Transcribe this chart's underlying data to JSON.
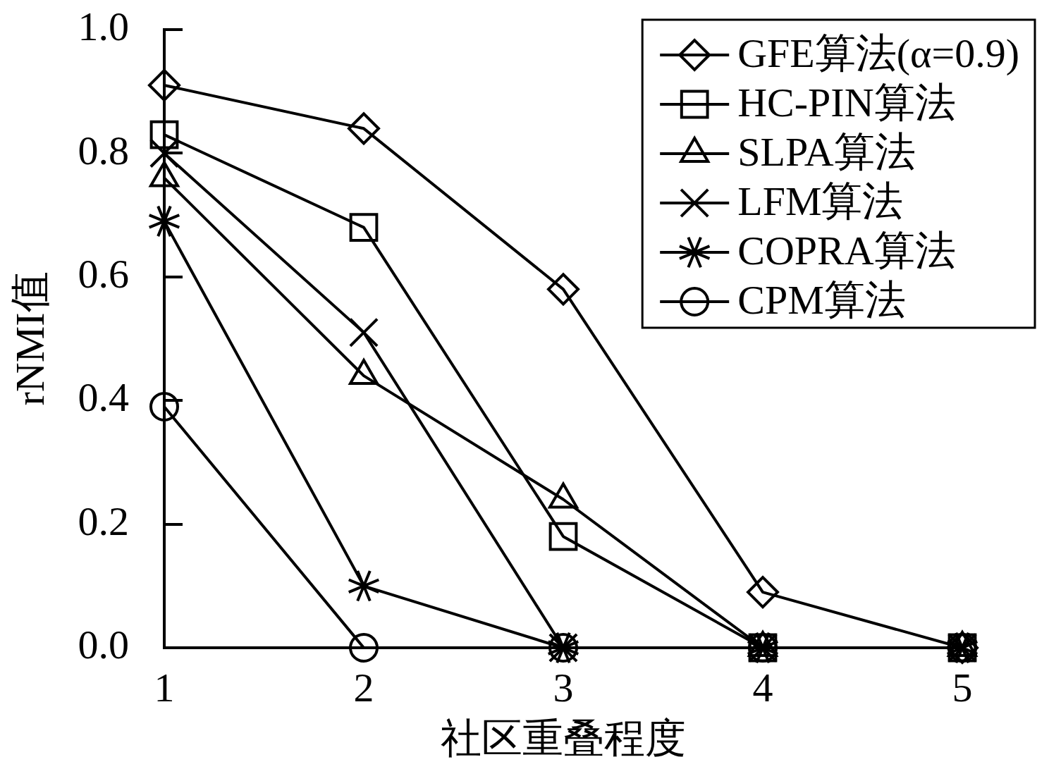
{
  "chart_data": {
    "type": "line",
    "xlabel": "社区重叠程度",
    "ylabel": "rNMI值",
    "categories": [
      "1",
      "2",
      "3",
      "4",
      "5"
    ],
    "ylim": [
      0,
      1
    ],
    "yticks": [
      {
        "value": 0,
        "label": "0.0"
      },
      0.2,
      0.4,
      0.6,
      0.8,
      {
        "value": 1,
        "label": "1.0"
      }
    ],
    "legend": "top right",
    "line_style": "solid",
    "series": [
      {
        "name": "GFE算法(α=0.9)",
        "color": "#000000",
        "marker": "diamond",
        "values": [
          0.91,
          0.84,
          0.58,
          0.09,
          0
        ]
      },
      {
        "name": "HC-PIN算法",
        "color": "#000000",
        "marker": "square",
        "values": [
          0.83,
          0.68,
          0.18,
          0,
          0
        ]
      },
      {
        "name": "SLPA算法",
        "color": "#000000",
        "marker": "triangle",
        "values": [
          0.76,
          0.44,
          0.24,
          0,
          0
        ]
      },
      {
        "name": "LFM算法",
        "color": "#000000",
        "marker": "cross",
        "values": [
          0.8,
          0.51,
          0,
          0,
          0
        ]
      },
      {
        "name": "COPRA算法",
        "color": "#000000",
        "marker": "cross",
        "values": [
          0.69,
          0.1,
          0,
          0,
          0
        ]
      },
      {
        "name": "CPM算法",
        "color": "#000000",
        "marker": "circle",
        "values": [
          0.39,
          0,
          0,
          0,
          0
        ]
      }
    ]
  }
}
